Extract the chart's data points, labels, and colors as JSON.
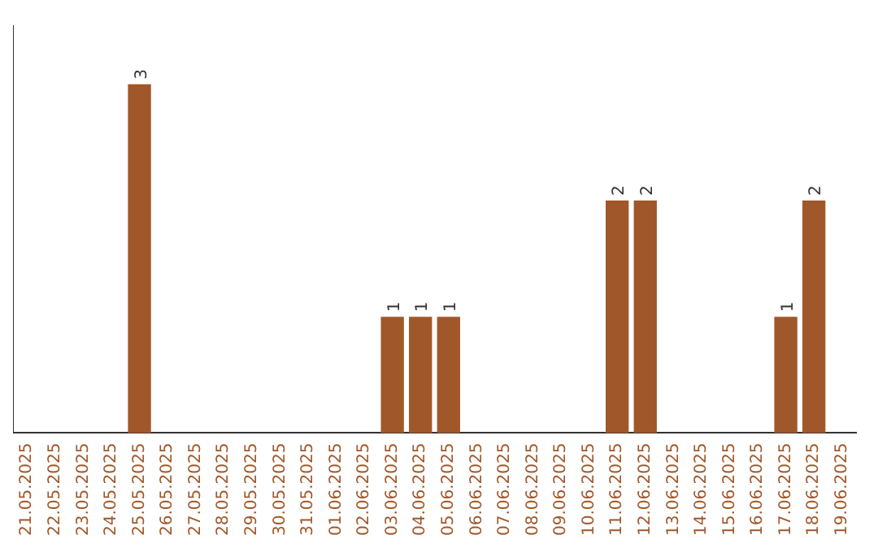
{
  "chart_data": {
    "type": "bar",
    "categories": [
      "21.05.2025",
      "22.05.2025",
      "23.05.2025",
      "24.05.2025",
      "25.05.2025",
      "26.05.2025",
      "27.05.2025",
      "28.05.2025",
      "29.05.2025",
      "30.05.2025",
      "31.05.2025",
      "01.06.2025",
      "02.06.2025",
      "03.06.2025",
      "04.06.2025",
      "05.06.2025",
      "06.06.2025",
      "07.06.2025",
      "08.06.2025",
      "09.06.2025",
      "10.06.2025",
      "11.06.2025",
      "12.06.2025",
      "13.06.2025",
      "14.06.2025",
      "15.06.2025",
      "16.06.2025",
      "17.06.2025",
      "18.06.2025",
      "19.06.2025"
    ],
    "values": [
      0,
      0,
      0,
      0,
      3,
      0,
      0,
      0,
      0,
      0,
      0,
      0,
      0,
      1,
      1,
      1,
      0,
      0,
      0,
      0,
      0,
      2,
      2,
      0,
      0,
      0,
      0,
      1,
      2,
      0
    ],
    "value_labels": [
      null,
      null,
      null,
      null,
      "3",
      null,
      null,
      null,
      null,
      null,
      null,
      null,
      null,
      "1",
      "1",
      "1",
      null,
      null,
      null,
      null,
      null,
      "2",
      "2",
      null,
      null,
      null,
      null,
      "1",
      "2",
      null
    ],
    "color": "#a0582a",
    "grid": false,
    "legend": false
  }
}
